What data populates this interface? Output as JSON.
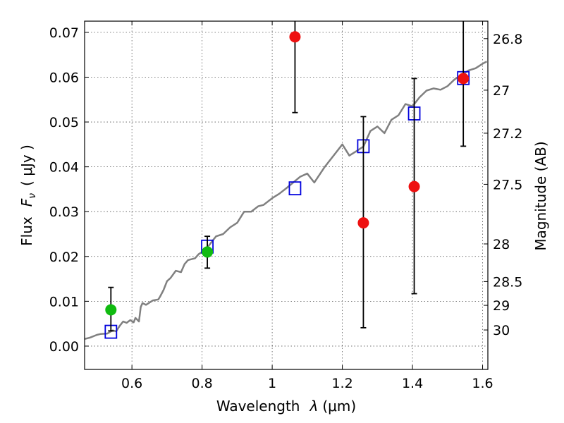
{
  "chart_data": {
    "type": "scatter",
    "xlabel_text": "Wavelength",
    "xlabel_symbol": "λ",
    "xlabel_unit": "(μm)",
    "ylabel_text": "Flux",
    "ylabel_symbol": "F",
    "ylabel_sub": "ν",
    "ylabel_unit": "( μJy )",
    "y2label": "Magnitude (AB)",
    "xlim": [
      0.465,
      1.615
    ],
    "ylim": [
      -0.0052,
      0.0725
    ],
    "x_ticks": [
      0.6,
      0.8,
      1.0,
      1.2,
      1.4,
      1.6
    ],
    "x_tick_labels": [
      "0.6",
      "0.8",
      "1",
      "1.2",
      "1.4",
      "1.6"
    ],
    "y_ticks": [
      0.0,
      0.01,
      0.02,
      0.03,
      0.04,
      0.05,
      0.06,
      0.07
    ],
    "y_tick_labels": [
      "0.00",
      "0.01",
      "0.02",
      "0.03",
      "0.04",
      "0.05",
      "0.06",
      "0.07"
    ],
    "mag_ticks": [
      {
        "label": "26.8",
        "flux": 0.0686
      },
      {
        "label": "27",
        "flux": 0.0571
      },
      {
        "label": "27.2",
        "flux": 0.0475
      },
      {
        "label": "27.5",
        "flux": 0.0361
      },
      {
        "label": "28",
        "flux": 0.0228
      },
      {
        "label": "28.5",
        "flux": 0.0144
      },
      {
        "label": "29",
        "flux": 0.0091
      },
      {
        "label": "30",
        "flux": 0.0036
      }
    ],
    "series": [
      {
        "name": "model spectrum",
        "type": "line",
        "color": "#808080",
        "x": [
          0.465,
          0.48,
          0.5,
          0.51,
          0.53,
          0.545,
          0.555,
          0.565,
          0.575,
          0.585,
          0.595,
          0.605,
          0.61,
          0.62,
          0.625,
          0.63,
          0.64,
          0.66,
          0.675,
          0.68,
          0.69,
          0.7,
          0.71,
          0.725,
          0.74,
          0.75,
          0.76,
          0.78,
          0.79,
          0.8,
          0.81,
          0.82,
          0.83,
          0.84,
          0.86,
          0.88,
          0.9,
          0.92,
          0.94,
          0.96,
          0.975,
          1.0,
          1.02,
          1.04,
          1.06,
          1.08,
          1.1,
          1.12,
          1.15,
          1.18,
          1.2,
          1.22,
          1.24,
          1.26,
          1.28,
          1.3,
          1.32,
          1.34,
          1.36,
          1.38,
          1.4,
          1.42,
          1.44,
          1.46,
          1.48,
          1.5,
          1.52,
          1.54,
          1.56,
          1.58,
          1.6,
          1.612
        ],
        "values": [
          0.0016,
          0.0019,
          0.0025,
          0.0027,
          0.0028,
          0.0035,
          0.0033,
          0.0045,
          0.0055,
          0.0052,
          0.0058,
          0.0053,
          0.0063,
          0.0055,
          0.0087,
          0.0096,
          0.0092,
          0.0102,
          0.0104,
          0.011,
          0.0125,
          0.0145,
          0.0152,
          0.0168,
          0.0165,
          0.0183,
          0.0192,
          0.0196,
          0.0205,
          0.021,
          0.0215,
          0.0225,
          0.0235,
          0.0245,
          0.025,
          0.0265,
          0.0275,
          0.03,
          0.03,
          0.0312,
          0.0315,
          0.033,
          0.034,
          0.0352,
          0.0365,
          0.0378,
          0.0385,
          0.0365,
          0.04,
          0.043,
          0.045,
          0.0425,
          0.0435,
          0.0445,
          0.048,
          0.049,
          0.0475,
          0.0505,
          0.0515,
          0.054,
          0.0535,
          0.0555,
          0.057,
          0.0575,
          0.0572,
          0.058,
          0.0595,
          0.0605,
          0.0615,
          0.062,
          0.063,
          0.0635
        ]
      },
      {
        "name": "model band flux",
        "type": "scatter",
        "marker": "open-square",
        "color": "#0000dd",
        "x": [
          0.54,
          0.815,
          1.065,
          1.26,
          1.405,
          1.545
        ],
        "values": [
          0.0032,
          0.0222,
          0.0352,
          0.0446,
          0.0519,
          0.0598
        ]
      },
      {
        "name": "observed (green)",
        "type": "scatter",
        "marker": "circle",
        "color": "#11bb11",
        "x": [
          0.54,
          0.815
        ],
        "values": [
          0.0081,
          0.021
        ],
        "err_low": [
          0.0034,
          0.0174
        ],
        "err_high": [
          0.0131,
          0.0245
        ]
      },
      {
        "name": "observed (red)",
        "type": "scatter",
        "marker": "circle",
        "color": "#ee1111",
        "x": [
          1.065,
          1.26,
          1.405,
          1.545
        ],
        "values": [
          0.069,
          0.0275,
          0.0356,
          0.0597
        ],
        "err_low": [
          0.0521,
          0.0041,
          0.0117,
          0.0446
        ],
        "err_high": [
          0.073,
          0.0512,
          0.0597,
          0.073
        ]
      }
    ]
  }
}
